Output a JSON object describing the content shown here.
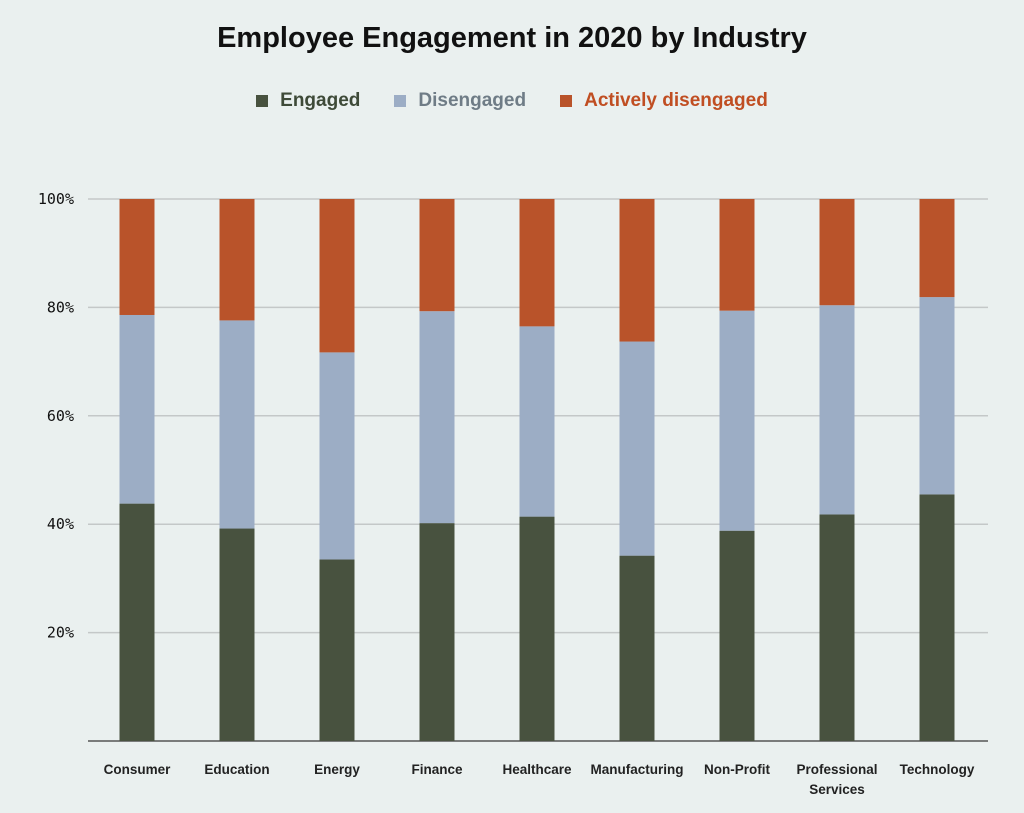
{
  "chart_data": {
    "type": "bar",
    "stacked": true,
    "title": "Employee Engagement in 2020 by Industry",
    "xlabel": "",
    "ylabel": "",
    "ylim": [
      0,
      100
    ],
    "yticks": [
      "20%",
      "40%",
      "60%",
      "80%",
      "100%"
    ],
    "ytick_values": [
      20,
      40,
      60,
      80,
      100
    ],
    "grid": true,
    "legend_position": "top",
    "categories": [
      "Consumer",
      "Education",
      "Energy",
      "Finance",
      "Healthcare",
      "Manufacturing",
      "Non-Profit",
      "Professional Services",
      "Technology"
    ],
    "series": [
      {
        "name": "Engaged",
        "color": "#48523f",
        "values": [
          43.8,
          39.2,
          33.5,
          40.2,
          41.4,
          34.2,
          38.8,
          41.8,
          45.5
        ]
      },
      {
        "name": "Disengaged",
        "color": "#9cadc5",
        "values": [
          34.8,
          38.4,
          38.2,
          39.1,
          35.1,
          39.5,
          40.6,
          38.6,
          36.4
        ]
      },
      {
        "name": "Actively disengaged",
        "color": "#b9532a",
        "values": [
          21.4,
          22.4,
          28.3,
          20.7,
          23.5,
          26.3,
          20.6,
          19.6,
          18.1
        ]
      }
    ],
    "legend_text_colors": [
      "#3e4a38",
      "#6f7c86",
      "#c04e22"
    ]
  }
}
